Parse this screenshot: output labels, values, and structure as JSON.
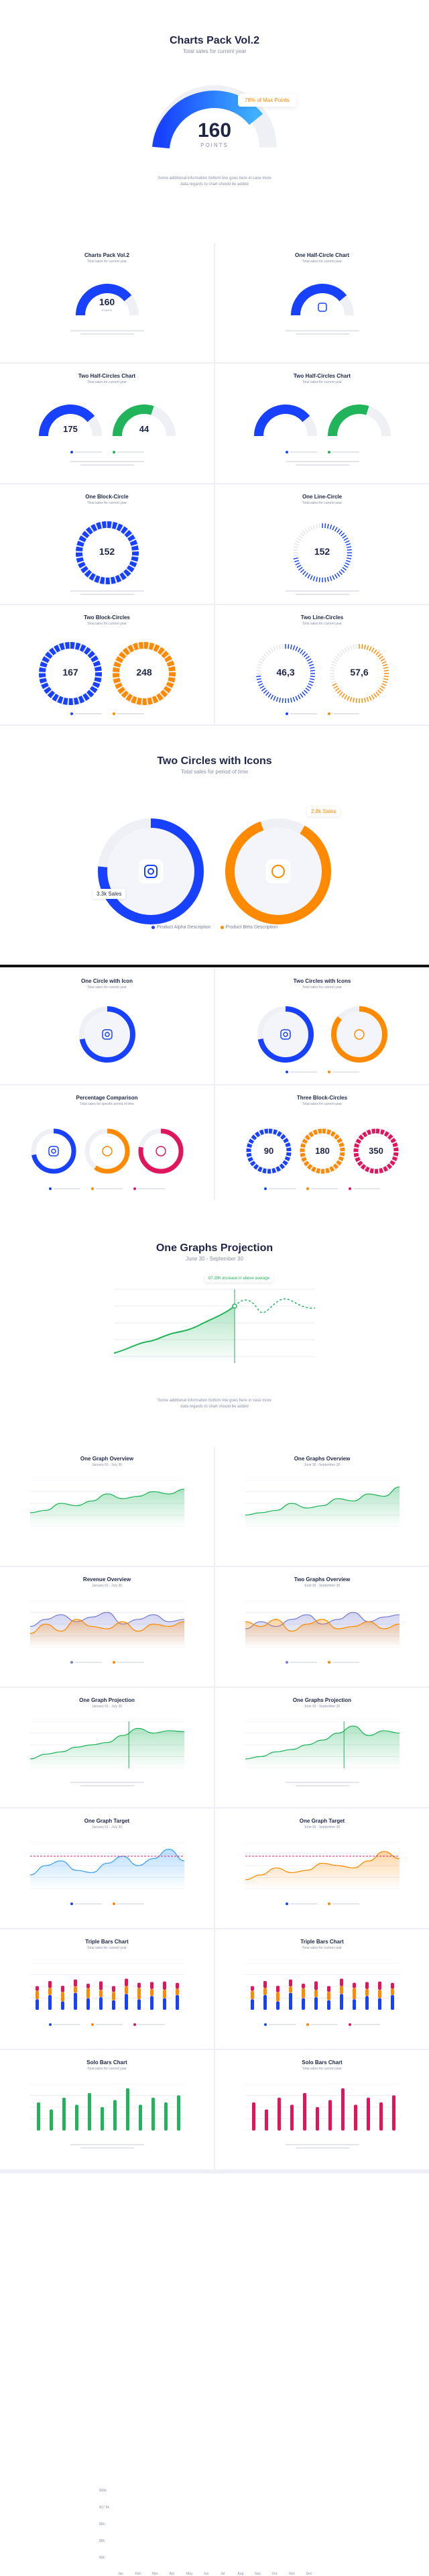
{
  "hero": {
    "title": "Charts Pack Vol.2",
    "subtitle": "Total sales for current year",
    "value": "160",
    "unit": "POINTS",
    "badge": "78% of Max Points",
    "percent": 78,
    "description": "Some additional information bottom line goes here in case more data regards to chart should be added"
  },
  "cards1": [
    {
      "title": "Charts Pack Vol.2",
      "subtitle": "Total sales for current year",
      "value": "160",
      "unit": "POINTS"
    },
    {
      "title": "One Half-Circle Chart",
      "subtitle": "Total sales for current year"
    },
    {
      "title": "Two Half-Circles Chart",
      "subtitle": "Total sales for current year",
      "values": [
        "175",
        "44"
      ]
    },
    {
      "title": "Two Half-Circles Chart",
      "subtitle": "Total sales for current year"
    },
    {
      "title": "One Block-Circle",
      "subtitle": "Total sales for current year",
      "value": "152"
    },
    {
      "title": "One Line-Circle",
      "subtitle": "Total sales for current year",
      "value": "152"
    },
    {
      "title": "Two Block-Circles",
      "subtitle": "Total sales for current year",
      "values": [
        "167",
        "248"
      ]
    },
    {
      "title": "Two Line-Circles",
      "subtitle": "Total sales for current year",
      "values": [
        "46,3",
        "57,6"
      ]
    }
  ],
  "icons_section": {
    "title": "Two Circles with Icons",
    "subtitle": "Total sales for period of time",
    "label_left": "3.3k Sales",
    "label_right": "2.8k Sales",
    "legend": [
      "Product Alpha Description",
      "Product Beta Description"
    ]
  },
  "cards2": [
    {
      "title": "One Circle with Icon",
      "subtitle": "Total sales for current year"
    },
    {
      "title": "Two Circles with Icons",
      "subtitle": "Total sales for current year"
    },
    {
      "title": "Percentage Comparison",
      "subtitle": "Total sales for specific period of time"
    },
    {
      "title": "Three Block-Circles",
      "subtitle": "Total sales for current year",
      "values": [
        "90",
        "180",
        "350"
      ]
    }
  ],
  "projection": {
    "title": "One Graphs Projection",
    "subtitle": "June 30 - September 30",
    "badge": "87.39K increase in above average",
    "yticks": [
      "$30k",
      "$17.5k",
      "$5k",
      "$5k",
      "$0k"
    ],
    "months": [
      "Jan",
      "Feb",
      "Mar",
      "Apr",
      "May",
      "Jun",
      "Jul",
      "Aug",
      "Sep",
      "Oct",
      "Nov",
      "Dec"
    ],
    "description": "Some additional information bottom line goes here in case more data regards to chart should be added"
  },
  "cards3": [
    {
      "title": "One Graph Overview",
      "subtitle": "January 01 - July 30"
    },
    {
      "title": "One Graphs Overview",
      "subtitle": "June 30 - September 30"
    },
    {
      "title": "Revenue Overview",
      "subtitle": "January 01 - July 30"
    },
    {
      "title": "Two Graphs Overview",
      "subtitle": "June 30 - September 30"
    },
    {
      "title": "One Graph Projection",
      "subtitle": "January 01 - July 30"
    },
    {
      "title": "One Graphs Projection",
      "subtitle": "June 30 - September 30"
    },
    {
      "title": "One Graph Target",
      "subtitle": "January 01 - July 30"
    },
    {
      "title": "One Graph Target",
      "subtitle": "June 30 - September 30"
    },
    {
      "title": "Triple Bars Chart",
      "subtitle": "Total sales for current year"
    },
    {
      "title": "Triple Bars Chart",
      "subtitle": "Total sales for current year"
    },
    {
      "title": "Solo Bars Chart",
      "subtitle": "Total sales for current year"
    },
    {
      "title": "Solo Bars Chart",
      "subtitle": "Total sales for current year"
    }
  ],
  "colors": {
    "blue": "#1741ff",
    "green": "#21b45a",
    "orange": "#ff8a00",
    "pink": "#e0155c",
    "navy": "#1f2547"
  }
}
